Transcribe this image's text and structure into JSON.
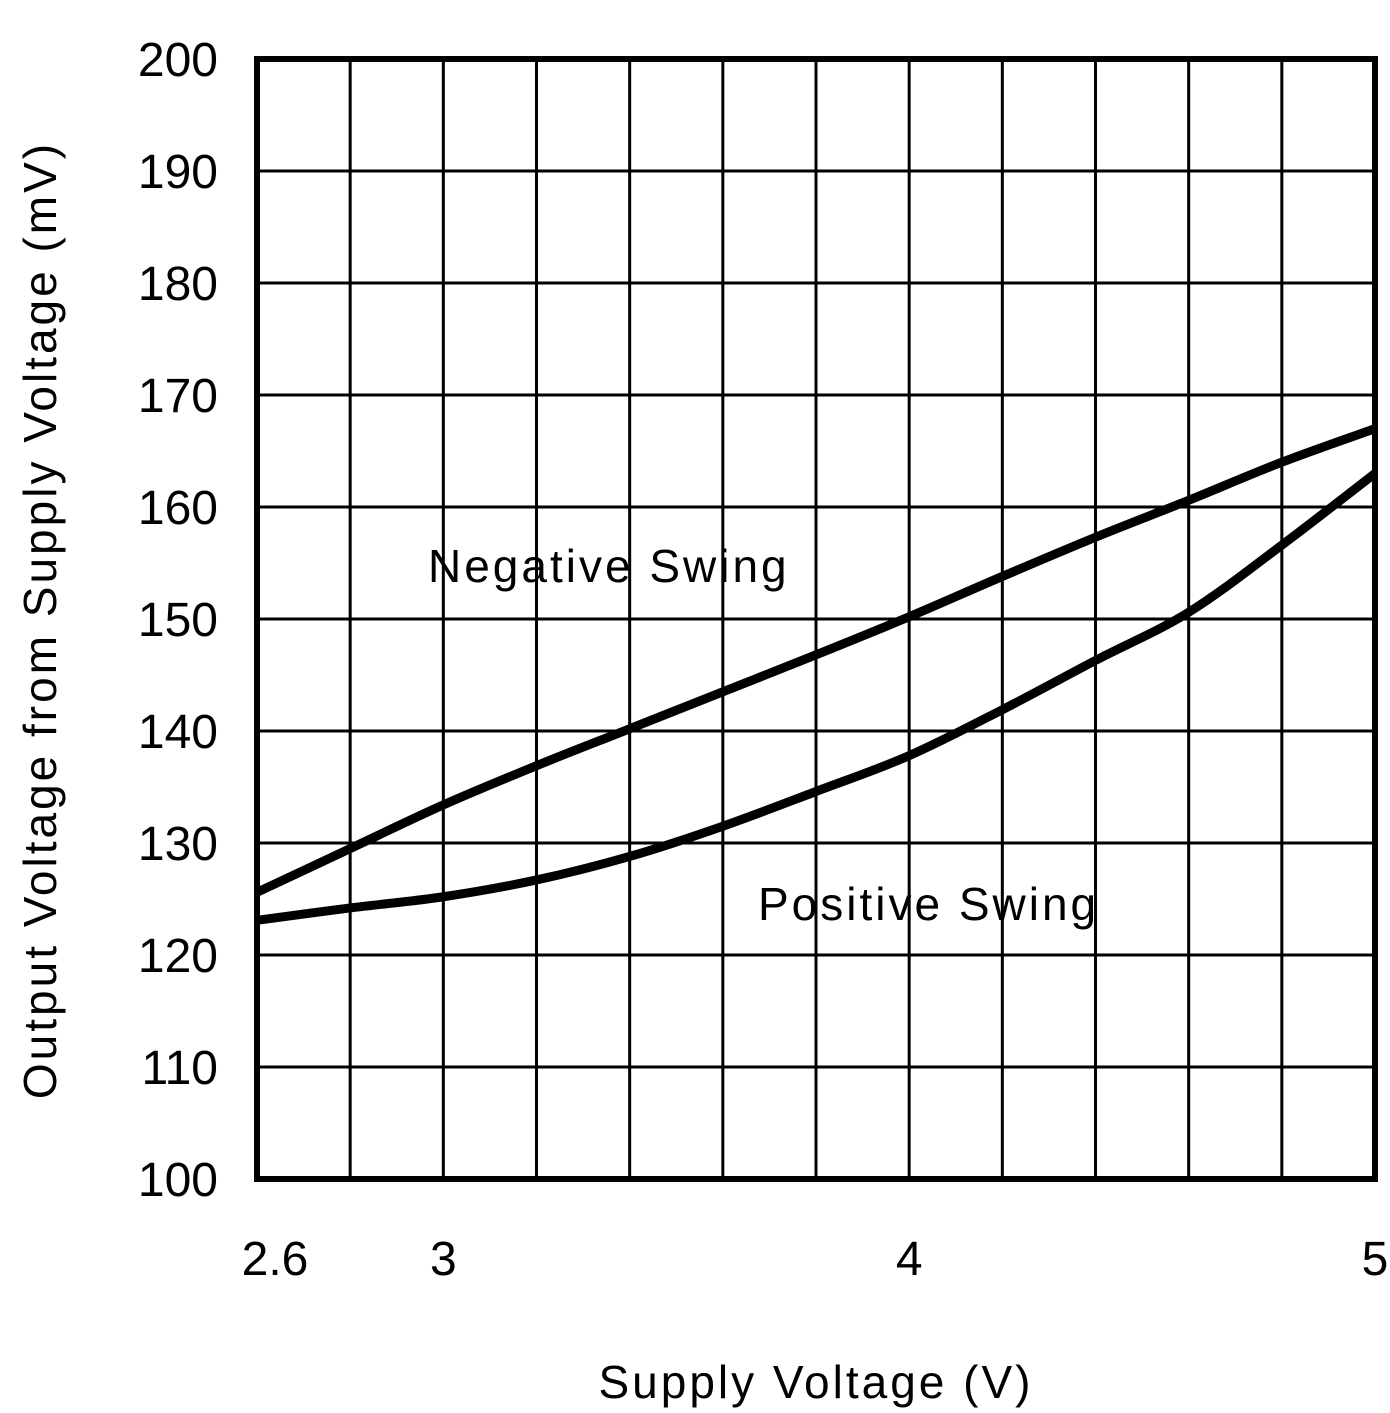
{
  "chart_data": {
    "type": "line",
    "title": "",
    "xlabel": "Supply Voltage (V)",
    "ylabel": "Output Voltage from Supply Voltage (mV)",
    "xlim": [
      2.6,
      5
    ],
    "ylim": [
      100,
      200
    ],
    "x_ticks": [
      2.6,
      3,
      4,
      5
    ],
    "x_tick_labels": [
      "2.6",
      "3",
      "4",
      "5"
    ],
    "x_grid_step": 0.2,
    "y_ticks": [
      100,
      110,
      120,
      130,
      140,
      150,
      160,
      170,
      180,
      190,
      200
    ],
    "y_tick_labels": [
      "100",
      "110",
      "120",
      "130",
      "140",
      "150",
      "160",
      "170",
      "180",
      "190",
      "200"
    ],
    "grid": true,
    "legend": "none (inline labels)",
    "line_color": "#000000",
    "series": [
      {
        "name": "Negative Swing",
        "x": [
          2.6,
          2.8,
          3.0,
          3.2,
          3.4,
          3.6,
          3.8,
          4.0,
          4.2,
          4.4,
          4.6,
          4.8,
          5.0
        ],
        "y": [
          125.6,
          129.5,
          133.4,
          136.9,
          140.2,
          143.5,
          146.8,
          150.2,
          153.8,
          157.3,
          160.6,
          164.0,
          167.0
        ]
      },
      {
        "name": "Positive Swing",
        "x": [
          2.6,
          2.8,
          3.0,
          3.2,
          3.4,
          3.6,
          3.8,
          4.0,
          4.2,
          4.4,
          4.6,
          4.8,
          5.0
        ],
        "y": [
          123.1,
          124.2,
          125.2,
          126.7,
          128.8,
          131.5,
          134.6,
          137.8,
          141.9,
          146.3,
          150.6,
          156.6,
          163.0
        ]
      }
    ]
  }
}
